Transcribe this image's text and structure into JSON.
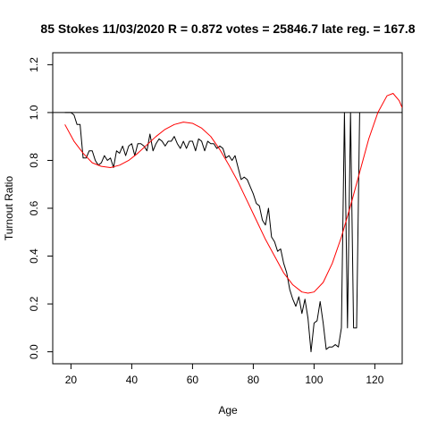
{
  "chart_data": {
    "type": "line",
    "title": "85 Stokes 11/03/2020 R = 0.872 votes = 25846.7 late reg. = 167.8",
    "xlabel": "Age",
    "ylabel": "Turnout Ratio",
    "xlim": [
      14,
      129
    ],
    "ylim": [
      -0.05,
      1.25
    ],
    "x_ticks": [
      20,
      40,
      60,
      80,
      100,
      120
    ],
    "y_ticks": [
      0.0,
      0.2,
      0.4,
      0.6,
      0.8,
      1.0,
      1.2
    ],
    "x_tick_labels": [
      "20",
      "40",
      "60",
      "80",
      "100",
      "120"
    ],
    "y_tick_labels": [
      "0.0",
      "0.2",
      "0.4",
      "0.6",
      "0.8",
      "1.0",
      "1.2"
    ],
    "grid": false,
    "reference_line": {
      "y": 1.0,
      "color": "#000000"
    },
    "series": [
      {
        "color": "#000000",
        "x": [
          18,
          19,
          20,
          21,
          22,
          23,
          24,
          25,
          26,
          27,
          28,
          29,
          30,
          31,
          32,
          33,
          34,
          35,
          36,
          37,
          38,
          39,
          40,
          41,
          42,
          43,
          44,
          45,
          46,
          47,
          48,
          49,
          50,
          51,
          52,
          53,
          54,
          55,
          56,
          57,
          58,
          59,
          60,
          61,
          62,
          63,
          64,
          65,
          66,
          67,
          68,
          69,
          70,
          71,
          72,
          73,
          74,
          75,
          76,
          77,
          78,
          79,
          80,
          81,
          82,
          83,
          84,
          85,
          86,
          87,
          88,
          89,
          90,
          91,
          92,
          93,
          94,
          95,
          96,
          97,
          98,
          99,
          100,
          101,
          102,
          103,
          104,
          105,
          106,
          107,
          108,
          109,
          110,
          111,
          112,
          113,
          114,
          115
        ],
        "y": [
          1.0,
          1.0,
          1.0,
          0.99,
          0.95,
          0.95,
          0.81,
          0.81,
          0.84,
          0.84,
          0.8,
          0.78,
          0.79,
          0.82,
          0.8,
          0.81,
          0.77,
          0.84,
          0.83,
          0.86,
          0.82,
          0.86,
          0.87,
          0.82,
          0.87,
          0.87,
          0.86,
          0.84,
          0.91,
          0.84,
          0.87,
          0.89,
          0.88,
          0.86,
          0.88,
          0.88,
          0.9,
          0.87,
          0.85,
          0.88,
          0.85,
          0.88,
          0.88,
          0.84,
          0.89,
          0.88,
          0.84,
          0.88,
          0.87,
          0.87,
          0.85,
          0.86,
          0.85,
          0.81,
          0.82,
          0.8,
          0.82,
          0.77,
          0.72,
          0.73,
          0.72,
          0.69,
          0.66,
          0.62,
          0.61,
          0.55,
          0.53,
          0.6,
          0.48,
          0.46,
          0.42,
          0.43,
          0.37,
          0.33,
          0.26,
          0.22,
          0.19,
          0.23,
          0.16,
          0.22,
          0.14,
          0.0,
          0.12,
          0.13,
          0.21,
          0.12,
          0.01,
          0.02,
          0.02,
          0.03,
          0.02,
          0.1,
          1.0,
          0.1,
          1.0,
          0.1,
          0.1,
          1.0
        ]
      },
      {
        "color": "#ff0000",
        "x": [
          18,
          21,
          24,
          27,
          30,
          33,
          36,
          39,
          42,
          45,
          48,
          51,
          54,
          57,
          60,
          63,
          66,
          69,
          72,
          75,
          78,
          81,
          84,
          87,
          90,
          93,
          96,
          98,
          100,
          103,
          106,
          109,
          112,
          115,
          118,
          121,
          124,
          126,
          128,
          129
        ],
        "y": [
          0.95,
          0.88,
          0.83,
          0.79,
          0.775,
          0.77,
          0.78,
          0.8,
          0.83,
          0.865,
          0.9,
          0.93,
          0.95,
          0.96,
          0.955,
          0.935,
          0.9,
          0.845,
          0.78,
          0.71,
          0.63,
          0.55,
          0.47,
          0.4,
          0.33,
          0.28,
          0.25,
          0.245,
          0.25,
          0.29,
          0.37,
          0.48,
          0.61,
          0.75,
          0.89,
          1.0,
          1.07,
          1.08,
          1.05,
          1.02
        ]
      }
    ]
  }
}
